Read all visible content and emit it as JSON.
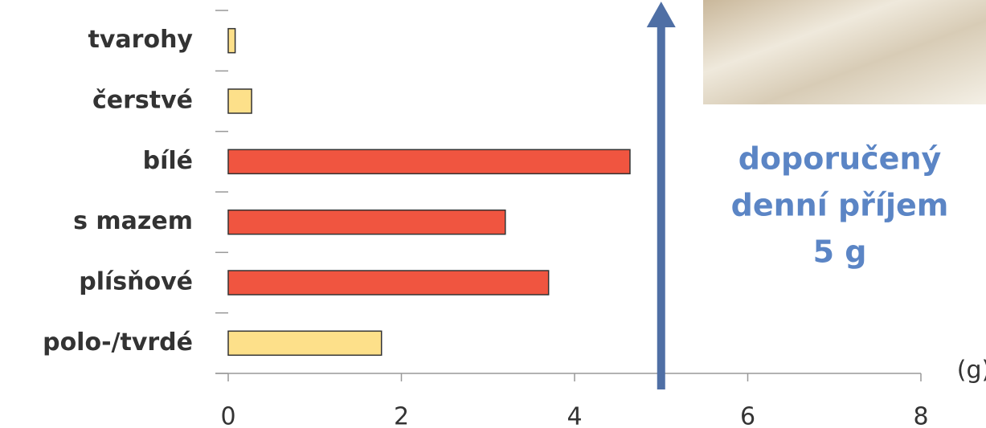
{
  "chart_data": {
    "type": "bar",
    "orientation": "horizontal",
    "categories": [
      "tvarohy",
      "čerstvé",
      "bílé",
      "s mazem",
      "plísňové",
      "polo-/tvrdé"
    ],
    "values": [
      0.08,
      0.27,
      4.64,
      3.2,
      3.7,
      1.77
    ],
    "colors": [
      "#fde08a",
      "#fde08a",
      "#f05540",
      "#f05540",
      "#f05540",
      "#fde08a"
    ],
    "xlim": [
      0,
      8
    ],
    "xticks": [
      0,
      2,
      4,
      6,
      8
    ],
    "x_unit": "(g)",
    "annotation": {
      "value": 5,
      "lines": [
        "doporučený",
        "denní příjem",
        "5 g"
      ],
      "color": "#4f6fa5",
      "text_color": "#5b85c5"
    }
  }
}
